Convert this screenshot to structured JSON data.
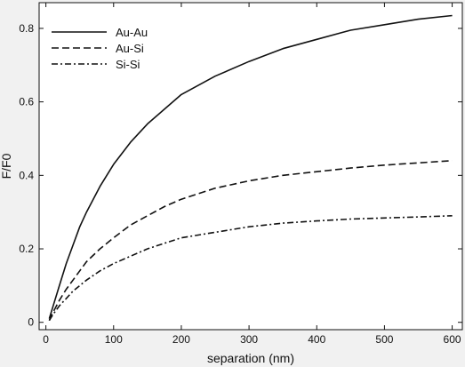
{
  "chart_data": {
    "type": "line",
    "xlabel": "separation (nm)",
    "ylabel": "F/F0",
    "xlim": [
      -10,
      615
    ],
    "ylim": [
      -0.02,
      0.87
    ],
    "xticks": [
      0,
      100,
      200,
      300,
      400,
      500,
      600
    ],
    "yticks": [
      0,
      0.2,
      0.4,
      0.6,
      0.8
    ],
    "grid": false,
    "legend_position": "top-left",
    "series": [
      {
        "name": "Au-Au",
        "dash": "solid",
        "x": [
          5,
          10,
          20,
          30,
          40,
          50,
          60,
          80,
          100,
          125,
          150,
          175,
          200,
          250,
          300,
          350,
          400,
          450,
          500,
          550,
          600
        ],
        "y": [
          0.01,
          0.04,
          0.1,
          0.16,
          0.21,
          0.26,
          0.3,
          0.37,
          0.43,
          0.49,
          0.54,
          0.58,
          0.62,
          0.67,
          0.71,
          0.745,
          0.77,
          0.795,
          0.81,
          0.825,
          0.835
        ]
      },
      {
        "name": "Au-Si",
        "dash": "dashed",
        "x": [
          5,
          10,
          20,
          30,
          40,
          50,
          60,
          80,
          100,
          125,
          150,
          175,
          200,
          250,
          300,
          350,
          400,
          450,
          500,
          550,
          600
        ],
        "y": [
          0.005,
          0.025,
          0.06,
          0.09,
          0.115,
          0.14,
          0.165,
          0.2,
          0.23,
          0.265,
          0.29,
          0.315,
          0.335,
          0.365,
          0.385,
          0.4,
          0.41,
          0.42,
          0.428,
          0.434,
          0.44
        ]
      },
      {
        "name": "Si-Si",
        "dash": "dashdot",
        "x": [
          5,
          10,
          20,
          30,
          40,
          50,
          60,
          80,
          100,
          125,
          150,
          175,
          200,
          250,
          300,
          350,
          400,
          450,
          500,
          550,
          600
        ],
        "y": [
          0.005,
          0.02,
          0.045,
          0.065,
          0.085,
          0.1,
          0.115,
          0.14,
          0.16,
          0.18,
          0.2,
          0.215,
          0.23,
          0.245,
          0.26,
          0.27,
          0.276,
          0.281,
          0.284,
          0.287,
          0.29
        ]
      }
    ]
  },
  "colors": {
    "background": "#f1f1f1",
    "plot_background": "#ffffff",
    "line": "#111111"
  }
}
